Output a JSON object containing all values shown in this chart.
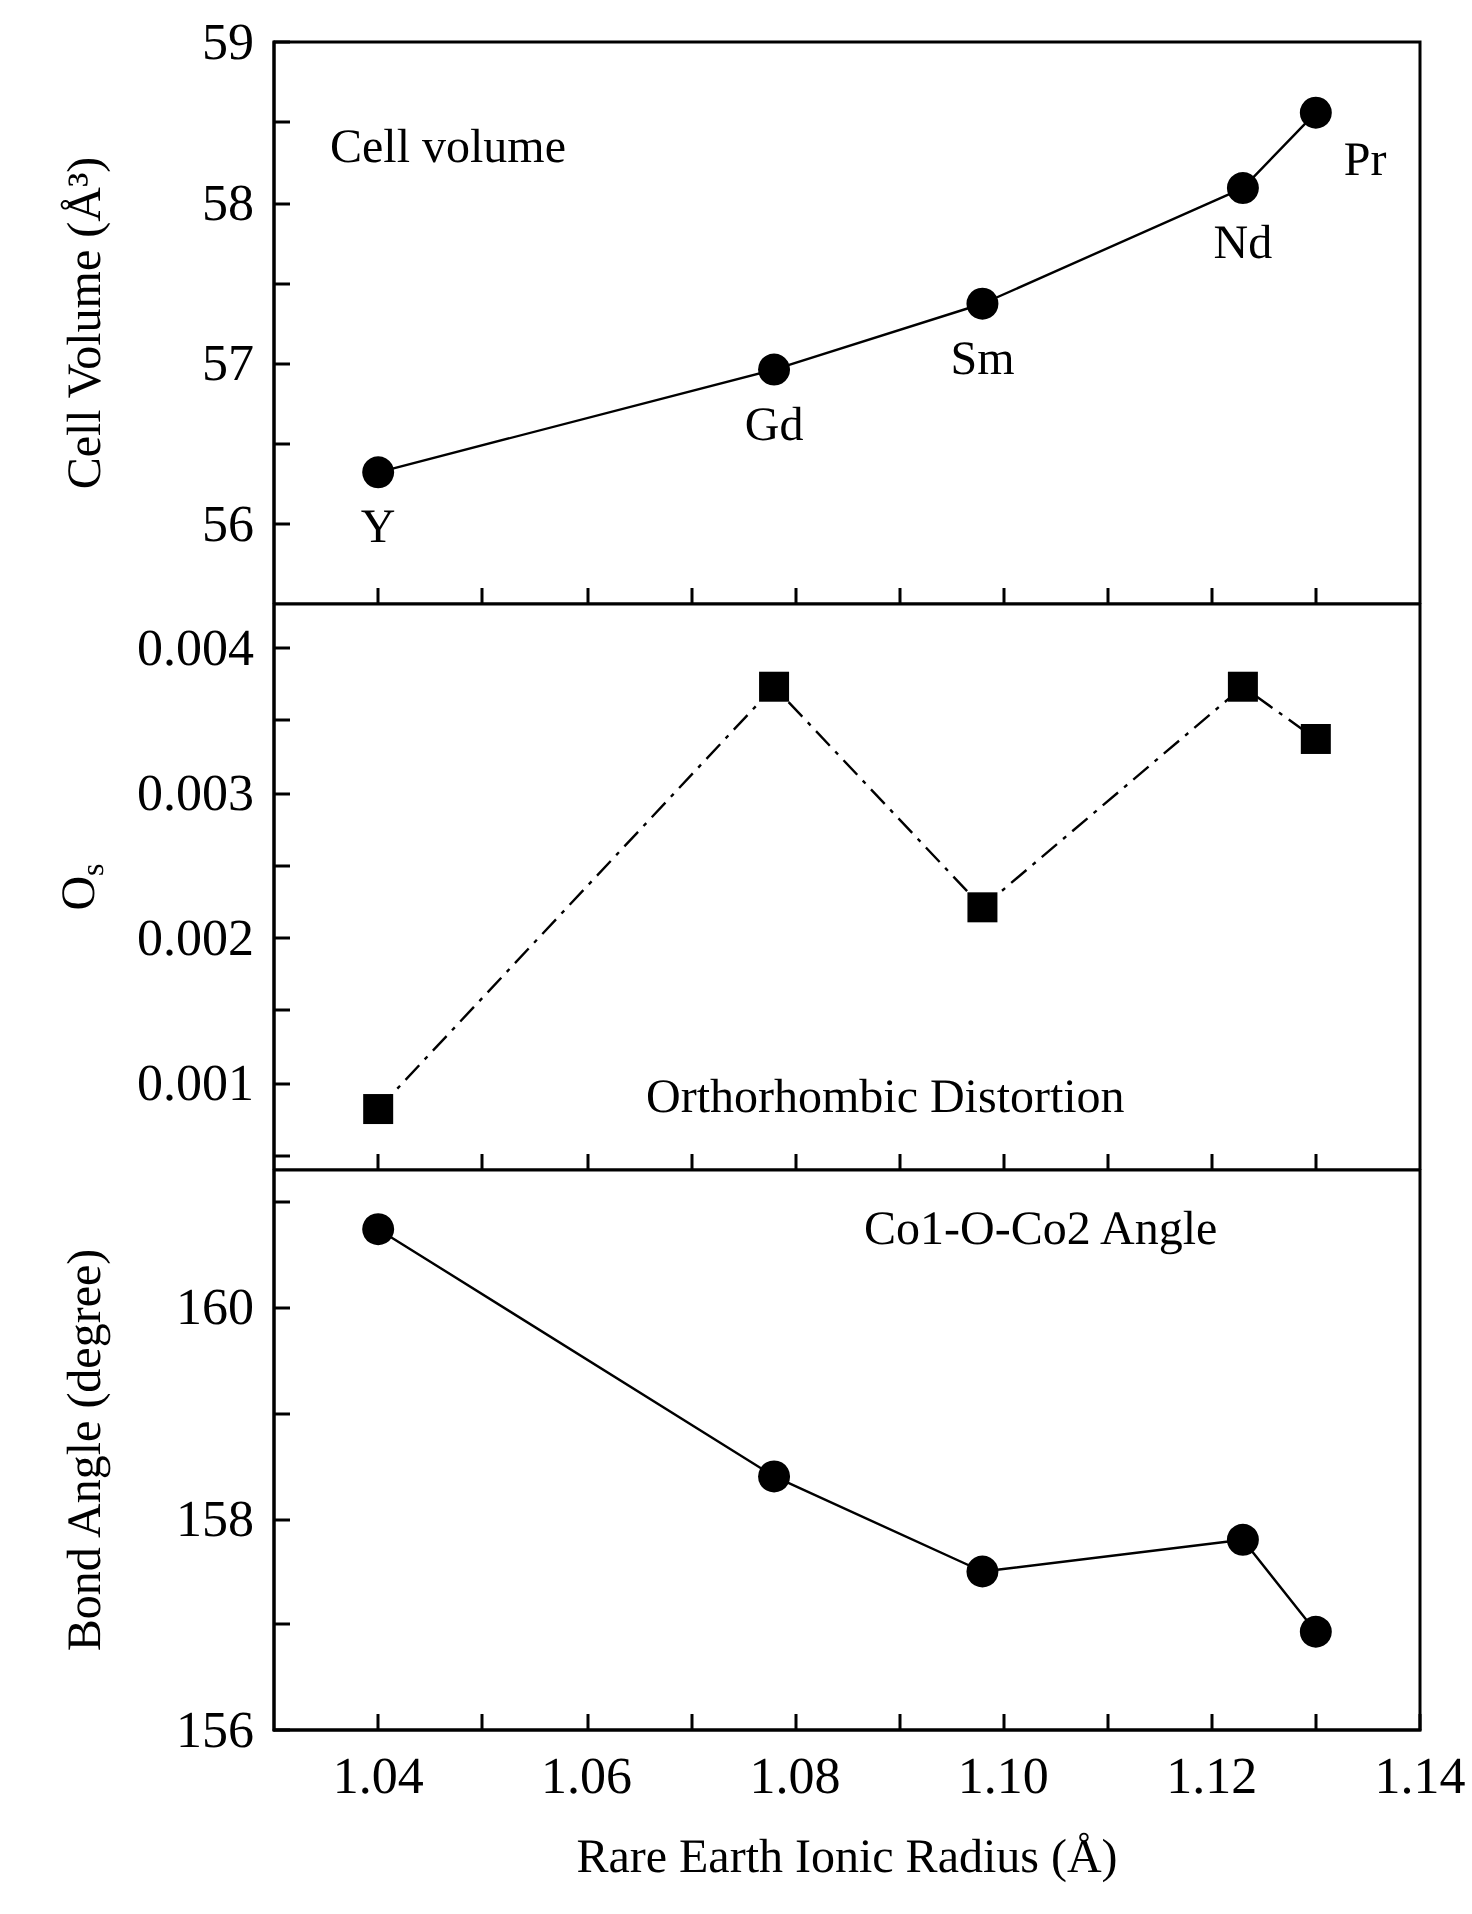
{
  "chart_data": [
    {
      "type": "line",
      "ylabel": "Cell Volume (Å³)",
      "xlim": [
        1.03,
        1.14
      ],
      "ylim": [
        55.5,
        59
      ],
      "xticks": [
        {
          "value": 1.04,
          "label": null
        },
        {
          "value": 1.05,
          "label": null
        },
        {
          "value": 1.06,
          "label": null
        },
        {
          "value": 1.07,
          "label": null
        },
        {
          "value": 1.08,
          "label": null
        },
        {
          "value": 1.09,
          "label": null
        },
        {
          "value": 1.1,
          "label": null
        },
        {
          "value": 1.11,
          "label": null
        },
        {
          "value": 1.12,
          "label": null
        },
        {
          "value": 1.13,
          "label": null
        }
      ],
      "yticks": [
        56,
        {
          "value": 56.5,
          "label": null
        },
        57,
        {
          "value": 57.5,
          "label": null
        },
        58,
        {
          "value": 58.5,
          "label": null
        },
        59
      ],
      "tick_labels": "y",
      "marker": "circle",
      "line_style": "solid",
      "series": [
        {
          "color": "#000000",
          "x": [
            1.04,
            1.078,
            1.098,
            1.123,
            1.13
          ],
          "values": [
            56.32,
            56.96,
            57.37,
            58.09,
            58.56
          ]
        }
      ],
      "annotations": [
        "Cell volume",
        {
          "text": "Y",
          "x": 1.04,
          "y": 56.32
        },
        {
          "text": "Gd",
          "x": 1.078,
          "y": 56.96
        },
        {
          "text": "Sm",
          "x": 1.098,
          "y": 57.37
        },
        {
          "text": "Nd",
          "x": 1.123,
          "y": 58.09
        },
        {
          "text": "Pr",
          "x": 1.13,
          "y": 58.56
        }
      ]
    },
    {
      "type": "line",
      "ylabel": "O$_{s}$",
      "xlim": [
        1.03,
        1.14
      ],
      "ylim": [
        0.0004,
        0.0043
      ],
      "xticks": [
        {
          "value": 1.04,
          "label": null
        },
        {
          "value": 1.05,
          "label": null
        },
        {
          "value": 1.06,
          "label": null
        },
        {
          "value": 1.07,
          "label": null
        },
        {
          "value": 1.08,
          "label": null
        },
        {
          "value": 1.09,
          "label": null
        },
        {
          "value": 1.1,
          "label": null
        },
        {
          "value": 1.11,
          "label": null
        },
        {
          "value": 1.12,
          "label": null
        },
        {
          "value": 1.13,
          "label": null
        }
      ],
      "yticks": [
        {
          "value": 0.0005,
          "label": null
        },
        0.001,
        {
          "value": 0.0015,
          "label": null
        },
        0.002,
        {
          "value": 0.0025,
          "label": null
        },
        0.003,
        {
          "value": 0.0035,
          "label": null
        },
        0.004
      ],
      "tick_labels": "y",
      "marker": "square",
      "line_style": "dashed",
      "series": [
        {
          "color": "#000000",
          "x": [
            1.04,
            1.078,
            1.098,
            1.123,
            1.13
          ],
          "values": [
            0.00082,
            0.00373,
            0.00221,
            0.00373,
            0.00337
          ]
        }
      ],
      "annotations": [
        "Orthorhombic Distortion"
      ]
    },
    {
      "type": "line",
      "xlabel": "Rare Earth Ionic Radius (Å)",
      "ylabel": "Bond Angle (degree)",
      "xlim": [
        1.03,
        1.14
      ],
      "ylim": [
        156,
        161.3
      ],
      "xticks": [
        1.04,
        {
          "value": 1.05,
          "label": null
        },
        1.06,
        {
          "value": 1.07,
          "label": null
        },
        1.08,
        {
          "value": 1.09,
          "label": null
        },
        {
          "value": 1.1,
          "label": "1.10"
        },
        {
          "value": 1.11,
          "label": null
        },
        1.12,
        {
          "value": 1.13,
          "label": null
        },
        1.14
      ],
      "yticks": [
        156,
        {
          "value": 157,
          "label": null
        },
        158,
        {
          "value": 159,
          "label": null
        },
        160,
        {
          "value": 161,
          "label": null
        }
      ],
      "marker": "circle",
      "line_style": "solid",
      "series": [
        {
          "color": "#000000",
          "x": [
            1.04,
            1.078,
            1.098,
            1.123,
            1.13
          ],
          "values": [
            160.74,
            158.4,
            157.5,
            157.8,
            156.93
          ]
        }
      ],
      "annotations": [
        "Co1-O-Co2 Angle"
      ]
    }
  ]
}
